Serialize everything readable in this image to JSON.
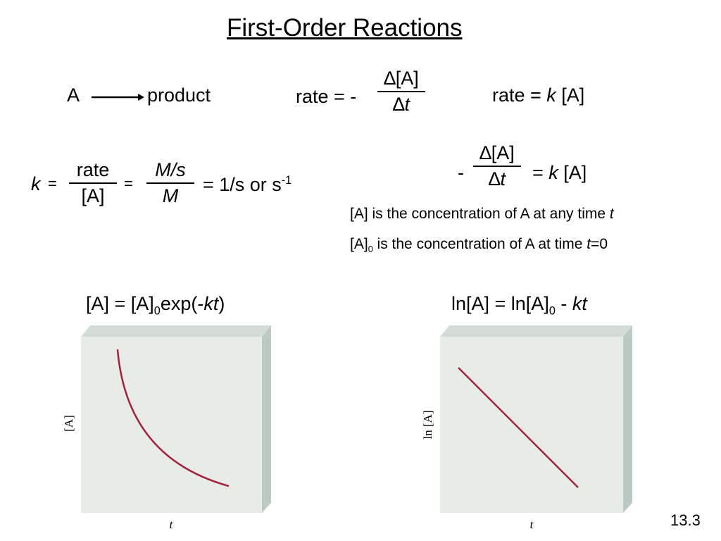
{
  "title": "First-Order Reactions",
  "reaction": {
    "reactant": "A",
    "product": "product"
  },
  "rate_definition": {
    "lhs": "rate = -",
    "numerator": "∆[A]",
    "denominator": [
      "∆",
      "t"
    ]
  },
  "rate_law": [
    "rate = ",
    "k",
    " [A]"
  ],
  "rate_constant": {
    "k": "k",
    "eq1": "=",
    "num1": "rate",
    "den1": "[A]",
    "eq2": "=",
    "num2": "M/s",
    "den2": "M",
    "result": "= 1/s or s",
    "exponent": "-1"
  },
  "differential": {
    "minus": "-",
    "numerator": "∆[A]",
    "denominator": [
      "∆",
      "t"
    ],
    "rhs": [
      "= ",
      "k",
      " [A]"
    ]
  },
  "definitions": [
    [
      "[A] is the concentration of A at any time ",
      "t"
    ],
    [
      "[A]",
      "0",
      " is the concentration of A at time ",
      "t",
      "=0"
    ]
  ],
  "graphs": [
    {
      "equation": [
        "[A] = [A]",
        "0",
        "exp(-",
        "kt",
        ")"
      ],
      "y_label": "[A]",
      "x_label": "t"
    },
    {
      "equation": [
        "ln[A] = ln[A]",
        "0",
        " - ",
        "kt"
      ],
      "y_label": "ln [A]",
      "x_label": "t"
    }
  ],
  "slide_number": "13.3"
}
